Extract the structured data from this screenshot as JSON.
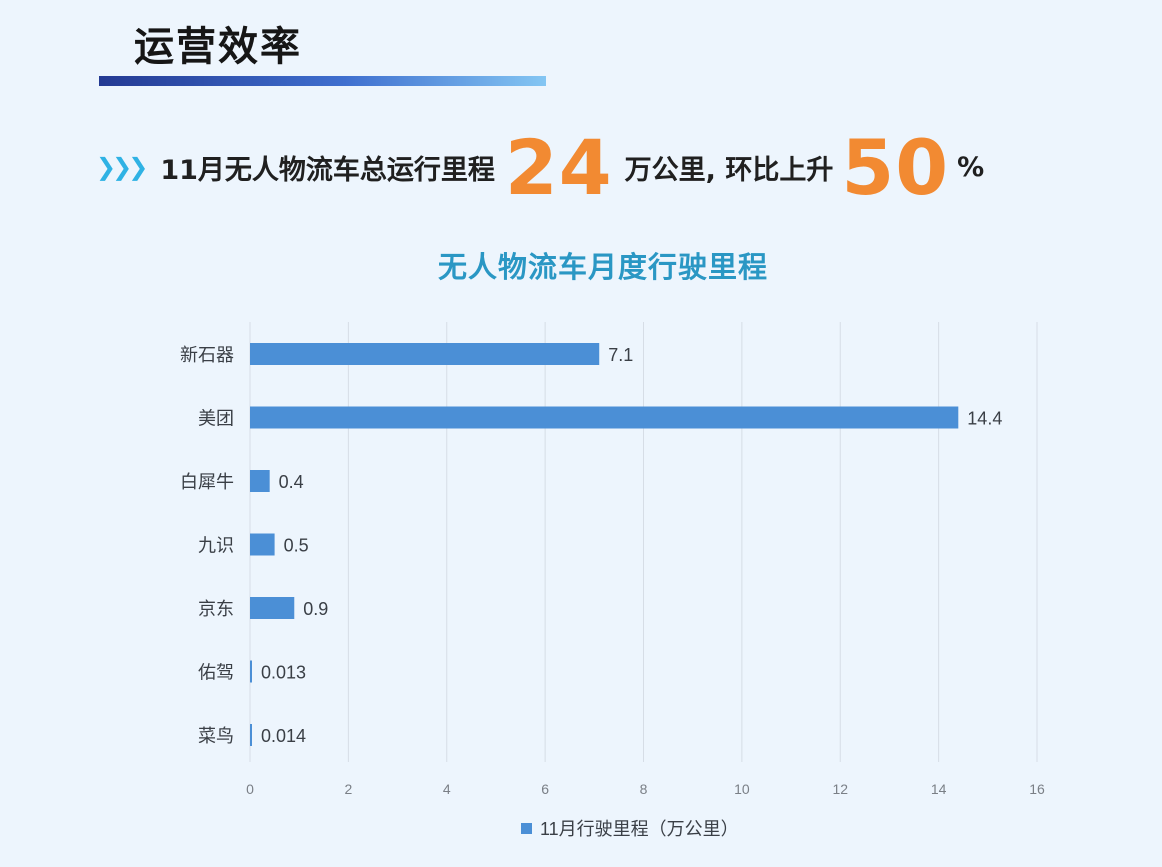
{
  "header": {
    "title": "运营效率"
  },
  "headline": {
    "prefix": "11月无人物流车总运行里程",
    "value": "24",
    "middle": "万公里, 环比上升",
    "percent": "50",
    "suffix": "%"
  },
  "colors": {
    "bar": "#4b8fd6",
    "accent": "#f28a32",
    "title": "#2a97c4",
    "chevron": "#2fb2e4"
  },
  "chart_data": {
    "type": "bar",
    "orientation": "horizontal",
    "title": "无人物流车月度行驶里程",
    "categories": [
      "新石器",
      "美团",
      "白犀牛",
      "九识",
      "京东",
      "佑驾",
      "菜鸟"
    ],
    "series": [
      {
        "name": "11月行驶里程（万公里）",
        "values": [
          7.1,
          14.4,
          0.4,
          0.5,
          0.9,
          0.013,
          0.014
        ],
        "labels": [
          "7.1",
          "14.4",
          "0.4",
          "0.5",
          "0.9",
          "0.013",
          "0.014"
        ]
      }
    ],
    "xlim": [
      0,
      16
    ],
    "xticks": [
      0,
      2,
      4,
      6,
      8,
      10,
      12,
      14,
      16
    ],
    "grid": "vertical",
    "legend": "bottom"
  }
}
